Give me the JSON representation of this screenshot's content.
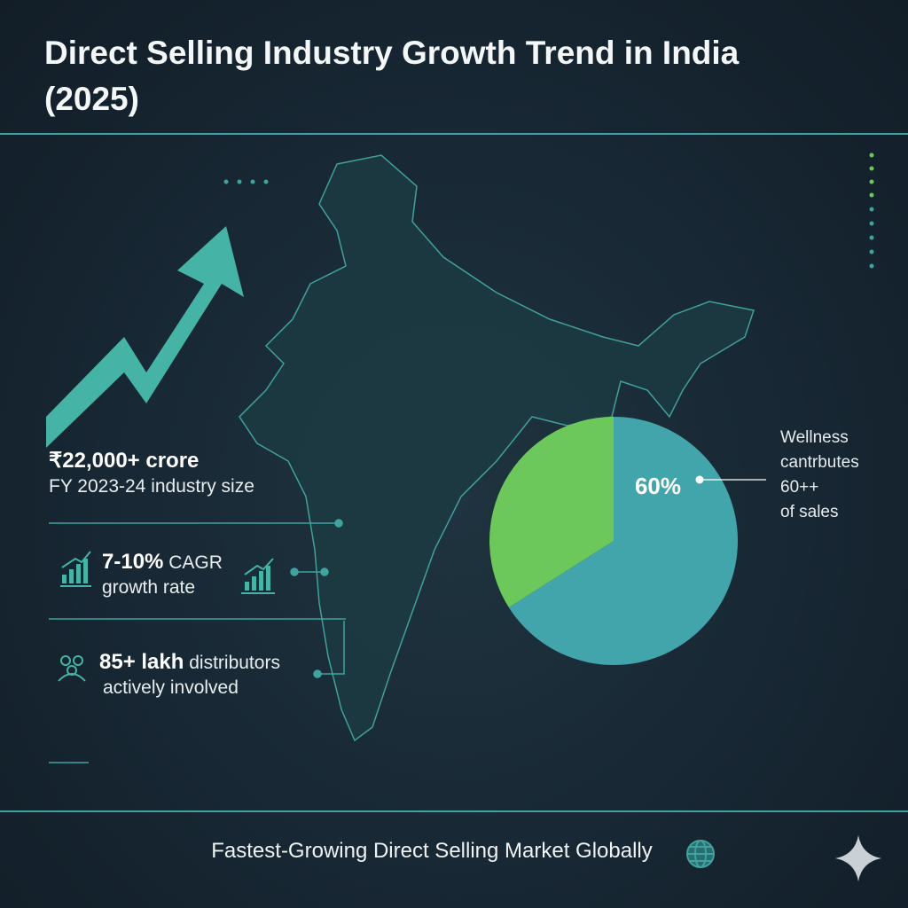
{
  "title": "Direct Selling Industry Growth Trend in India (2025)",
  "stats": [
    {
      "highlight": "₹22,000+ crore",
      "rest": "",
      "sub": "FY 2023-24 industry size",
      "icon": "none"
    },
    {
      "highlight": "7-10%",
      "rest": " CAGR",
      "sub": "growth rate",
      "icon": "bar-chart-growth-icon"
    },
    {
      "highlight": "85+ lakh",
      "rest": " distributors",
      "sub": "actively involved",
      "icon": "people-group-icon"
    }
  ],
  "pie_callout": [
    "Wellness",
    "cantrbutes",
    "60++",
    "of sales"
  ],
  "footer": "Fastest-Growing Direct Selling Market Globally",
  "colors": {
    "teal": "#42a5ab",
    "green": "#6cc85a",
    "accent": "#3fa39f",
    "background": "#16232f"
  },
  "chart_data": {
    "type": "pie",
    "values": [
      66,
      34
    ],
    "colors": [
      "#42a5ab",
      "#6cc85a"
    ],
    "data_label": "60%"
  }
}
